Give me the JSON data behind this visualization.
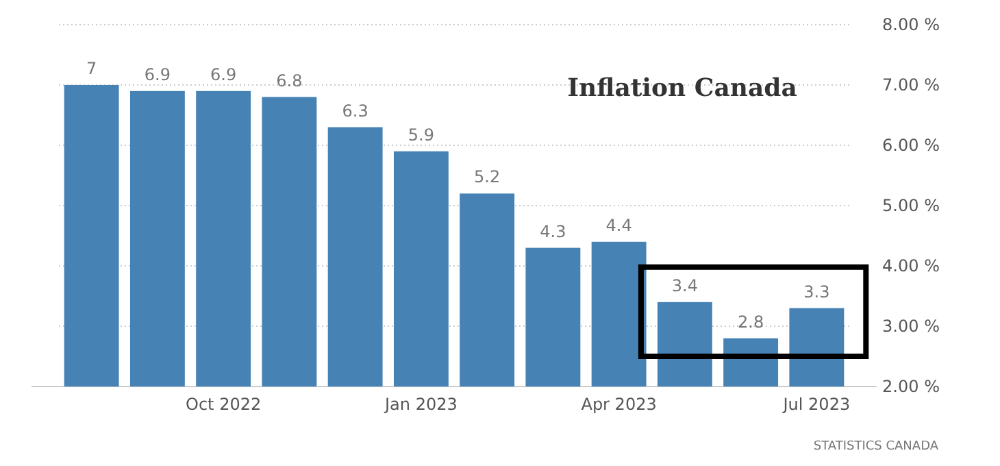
{
  "chart_data": {
    "type": "bar",
    "title": "Inflation Canada",
    "categories": [
      null,
      null,
      "Oct 2022",
      null,
      null,
      "Jan 2023",
      null,
      null,
      "Apr 2023",
      null,
      null,
      "Jul 2023"
    ],
    "values": [
      7,
      6.9,
      6.9,
      6.8,
      6.3,
      5.9,
      5.2,
      4.3,
      4.4,
      3.4,
      2.8,
      3.3
    ],
    "color": "#4682b4",
    "data_labels": true,
    "ylim": [
      2,
      8
    ],
    "yticks": [
      {
        "value": 2,
        "label": "2.00 %"
      },
      {
        "value": 3,
        "label": "3.00 %"
      },
      {
        "value": 4,
        "label": "4.00 %"
      },
      {
        "value": 5,
        "label": "5.00 %"
      },
      {
        "value": 6,
        "label": "6.00 %"
      },
      {
        "value": 7,
        "label": "7.00 %"
      },
      {
        "value": 8,
        "label": "8.00 %"
      }
    ],
    "grid": "y",
    "annotations": [
      "STATISTICS CANADA"
    ]
  }
}
